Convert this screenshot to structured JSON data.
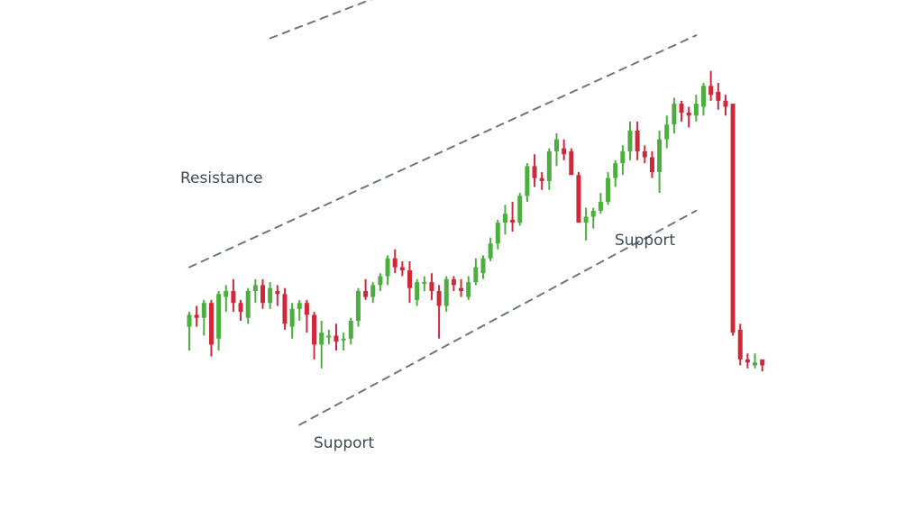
{
  "chart_data": {
    "type": "candlestick",
    "title": "",
    "xlabel": "",
    "ylabel": "",
    "axes_visible": false,
    "grid": false,
    "legend": "none",
    "colors": {
      "up": "#4cae3f",
      "down": "#d0283a",
      "trendline": "#6b7780",
      "text": "#3f4a55",
      "background": "#ffffff"
    },
    "ylim": [
      0,
      100
    ],
    "candles": [
      {
        "o": 28,
        "h": 33,
        "l": 20,
        "c": 32
      },
      {
        "o": 32,
        "h": 35,
        "l": 28,
        "c": 31
      },
      {
        "o": 31,
        "h": 37,
        "l": 25,
        "c": 36
      },
      {
        "o": 36,
        "h": 37,
        "l": 18,
        "c": 22
      },
      {
        "o": 24,
        "h": 40,
        "l": 20,
        "c": 39
      },
      {
        "o": 38,
        "h": 42,
        "l": 33,
        "c": 40
      },
      {
        "o": 40,
        "h": 44,
        "l": 33,
        "c": 36
      },
      {
        "o": 36,
        "h": 37,
        "l": 30,
        "c": 33
      },
      {
        "o": 31,
        "h": 41,
        "l": 29,
        "c": 40
      },
      {
        "o": 40,
        "h": 44,
        "l": 36,
        "c": 42
      },
      {
        "o": 42,
        "h": 44,
        "l": 34,
        "c": 36
      },
      {
        "o": 36,
        "h": 43,
        "l": 34,
        "c": 41
      },
      {
        "o": 40,
        "h": 42,
        "l": 35,
        "c": 39
      },
      {
        "o": 39,
        "h": 41,
        "l": 27,
        "c": 29
      },
      {
        "o": 28,
        "h": 36,
        "l": 24,
        "c": 34
      },
      {
        "o": 34,
        "h": 37,
        "l": 30,
        "c": 36
      },
      {
        "o": 36,
        "h": 37,
        "l": 26,
        "c": 32
      },
      {
        "o": 32,
        "h": 33,
        "l": 17,
        "c": 22
      },
      {
        "o": 22,
        "h": 30,
        "l": 14,
        "c": 26
      },
      {
        "o": 25,
        "h": 27,
        "l": 22,
        "c": 25
      },
      {
        "o": 25,
        "h": 29,
        "l": 20,
        "c": 23
      },
      {
        "o": 24,
        "h": 26,
        "l": 20,
        "c": 24
      },
      {
        "o": 24,
        "h": 31,
        "l": 22,
        "c": 30
      },
      {
        "o": 30,
        "h": 41,
        "l": 28,
        "c": 40
      },
      {
        "o": 40,
        "h": 44,
        "l": 37,
        "c": 38
      },
      {
        "o": 38,
        "h": 43,
        "l": 36,
        "c": 42
      },
      {
        "o": 42,
        "h": 46,
        "l": 40,
        "c": 45
      },
      {
        "o": 45,
        "h": 52,
        "l": 42,
        "c": 51
      },
      {
        "o": 51,
        "h": 54,
        "l": 46,
        "c": 48
      },
      {
        "o": 48,
        "h": 50,
        "l": 45,
        "c": 47
      },
      {
        "o": 47,
        "h": 50,
        "l": 36,
        "c": 41
      },
      {
        "o": 37,
        "h": 44,
        "l": 35,
        "c": 43
      },
      {
        "o": 43,
        "h": 45,
        "l": 40,
        "c": 43
      },
      {
        "o": 43,
        "h": 46,
        "l": 37,
        "c": 40
      },
      {
        "o": 40,
        "h": 42,
        "l": 24,
        "c": 35
      },
      {
        "o": 35,
        "h": 45,
        "l": 33,
        "c": 44
      },
      {
        "o": 44,
        "h": 45,
        "l": 40,
        "c": 42
      },
      {
        "o": 41,
        "h": 44,
        "l": 38,
        "c": 40
      },
      {
        "o": 38,
        "h": 45,
        "l": 37,
        "c": 43
      },
      {
        "o": 43,
        "h": 51,
        "l": 42,
        "c": 48
      },
      {
        "o": 46,
        "h": 52,
        "l": 44,
        "c": 51
      },
      {
        "o": 51,
        "h": 58,
        "l": 50,
        "c": 56
      },
      {
        "o": 56,
        "h": 64,
        "l": 54,
        "c": 63
      },
      {
        "o": 63,
        "h": 69,
        "l": 59,
        "c": 66
      },
      {
        "o": 64,
        "h": 70,
        "l": 60,
        "c": 63
      },
      {
        "o": 63,
        "h": 73,
        "l": 62,
        "c": 72
      },
      {
        "o": 72,
        "h": 83,
        "l": 70,
        "c": 82
      },
      {
        "o": 82,
        "h": 86,
        "l": 75,
        "c": 78
      },
      {
        "o": 78,
        "h": 80,
        "l": 74,
        "c": 77
      },
      {
        "o": 77,
        "h": 88,
        "l": 74,
        "c": 87
      },
      {
        "o": 87,
        "h": 93,
        "l": 82,
        "c": 91
      },
      {
        "o": 88,
        "h": 91,
        "l": 84,
        "c": 86
      },
      {
        "o": 87,
        "h": 88,
        "l": 80,
        "c": 79
      },
      {
        "o": 79,
        "h": 80,
        "l": 63,
        "c": 63
      },
      {
        "o": 63,
        "h": 68,
        "l": 57,
        "c": 65
      },
      {
        "o": 65,
        "h": 68,
        "l": 61,
        "c": 67
      },
      {
        "o": 67,
        "h": 73,
        "l": 66,
        "c": 70
      },
      {
        "o": 70,
        "h": 80,
        "l": 69,
        "c": 78
      },
      {
        "o": 78,
        "h": 84,
        "l": 75,
        "c": 83
      },
      {
        "o": 83,
        "h": 89,
        "l": 79,
        "c": 87
      },
      {
        "o": 87,
        "h": 97,
        "l": 84,
        "c": 94
      },
      {
        "o": 94,
        "h": 97,
        "l": 84,
        "c": 87
      },
      {
        "o": 87,
        "h": 89,
        "l": 83,
        "c": 85
      },
      {
        "o": 85,
        "h": 87,
        "l": 78,
        "c": 80
      },
      {
        "o": 80,
        "h": 94,
        "l": 73,
        "c": 91
      },
      {
        "o": 91,
        "h": 99,
        "l": 88,
        "c": 96
      },
      {
        "o": 96,
        "h": 105,
        "l": 93,
        "c": 103
      },
      {
        "o": 103,
        "h": 104,
        "l": 97,
        "c": 100
      },
      {
        "o": 100,
        "h": 102,
        "l": 95,
        "c": 99
      },
      {
        "o": 99,
        "h": 106,
        "l": 97,
        "c": 103
      },
      {
        "o": 102,
        "h": 110,
        "l": 99,
        "c": 109
      },
      {
        "o": 109,
        "h": 114,
        "l": 104,
        "c": 106
      },
      {
        "o": 107,
        "h": 110,
        "l": 101,
        "c": 104
      },
      {
        "o": 104,
        "h": 106,
        "l": 99,
        "c": 102
      },
      {
        "o": 103,
        "h": 103,
        "l": 25,
        "c": 26
      },
      {
        "o": 27,
        "h": 29,
        "l": 15,
        "c": 17
      },
      {
        "o": 17,
        "h": 19,
        "l": 14,
        "c": 16
      },
      {
        "o": 15,
        "h": 19,
        "l": 14,
        "c": 16
      },
      {
        "o": 17,
        "h": 17,
        "l": 13,
        "c": 15
      }
    ],
    "trendlines": [
      {
        "label": "",
        "points": [
          [
            0,
            48
          ],
          [
            69,
            126
          ]
        ]
      },
      {
        "label": "",
        "points": [
          [
            11,
            125
          ],
          [
            31,
            144
          ]
        ]
      },
      {
        "label": "",
        "points": [
          [
            15,
            -5
          ],
          [
            69,
            67
          ]
        ]
      }
    ],
    "annotations": [
      {
        "text": "Resistance"
      },
      {
        "text": "Support"
      },
      {
        "text": "Support"
      }
    ]
  }
}
